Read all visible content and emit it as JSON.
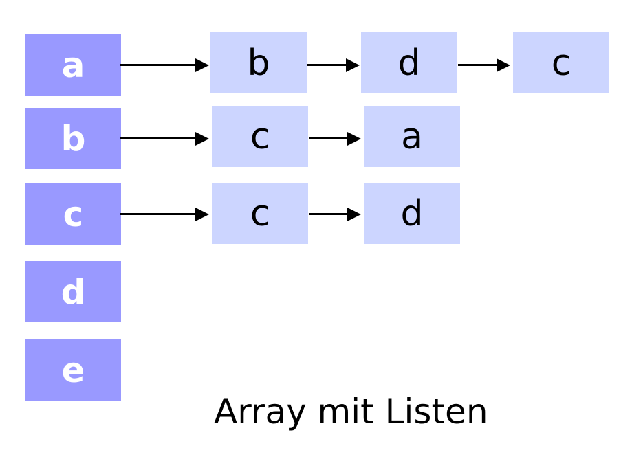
{
  "vertices": [
    "a",
    "b",
    "c",
    "d",
    "e"
  ],
  "lists": {
    "a": [
      "b",
      "d",
      "c"
    ],
    "b": [
      "c",
      "a"
    ],
    "c": [
      "c",
      "d"
    ],
    "d": [],
    "e": []
  },
  "caption": "Array mit Listen",
  "colors": {
    "vertex_fill": "#9999ff",
    "vertex_text": "#ffffff",
    "list_fill": "#ccd5ff",
    "list_text": "#000000",
    "arrow": "#000000"
  }
}
